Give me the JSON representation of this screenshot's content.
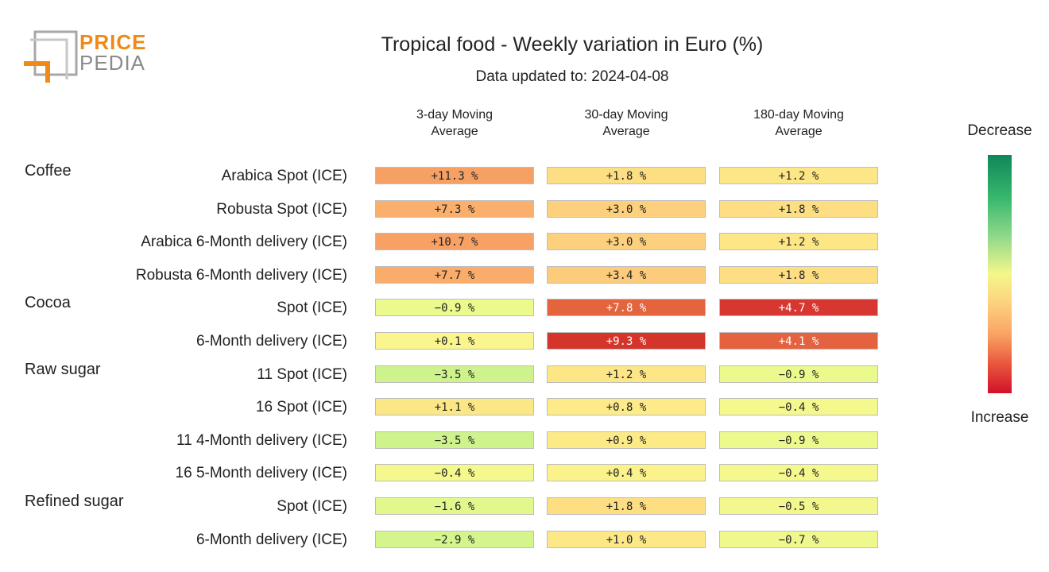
{
  "logo": {
    "line1": "PRICE",
    "line2": "PEDIA"
  },
  "chart_data": {
    "type": "heatmap",
    "title": "Tropical food - Weekly variation in Euro (%)",
    "subtitle": "Data updated to: 2024-04-08",
    "columns": [
      "3-day Moving Average",
      "30-day Moving Average",
      "180-day Moving Average"
    ],
    "column_lines": [
      [
        "3-day Moving",
        "Average"
      ],
      [
        "30-day Moving",
        "Average"
      ],
      [
        "180-day Moving",
        "Average"
      ]
    ],
    "scale": {
      "top_label": "Decrease",
      "bottom_label": "Increase"
    },
    "groups": [
      {
        "name": "Coffee",
        "rows": [
          {
            "label": "Arabica Spot (ICE)",
            "values": [
              11.3,
              1.8,
              1.2
            ],
            "texts": [
              "+11.3 %",
              "+1.8 %",
              "+1.2 %"
            ]
          },
          {
            "label": "Robusta Spot (ICE)",
            "values": [
              7.3,
              3.0,
              1.8
            ],
            "texts": [
              "+7.3 %",
              "+3.0 %",
              "+1.8 %"
            ]
          },
          {
            "label": "Arabica 6-Month delivery (ICE)",
            "values": [
              10.7,
              3.0,
              1.2
            ],
            "texts": [
              "+10.7 %",
              "+3.0 %",
              "+1.2 %"
            ]
          },
          {
            "label": "Robusta 6-Month delivery (ICE)",
            "values": [
              7.7,
              3.4,
              1.8
            ],
            "texts": [
              "+7.7 %",
              "+3.4 %",
              "+1.8 %"
            ]
          }
        ]
      },
      {
        "name": "Cocoa",
        "rows": [
          {
            "label": "Spot (ICE)",
            "values": [
              -0.9,
              7.8,
              4.7
            ],
            "texts": [
              "−0.9 %",
              "+7.8 %",
              "+4.7 %"
            ]
          },
          {
            "label": "6-Month delivery (ICE)",
            "values": [
              0.1,
              9.3,
              4.1
            ],
            "texts": [
              "+0.1 %",
              "+9.3 %",
              "+4.1 %"
            ]
          }
        ]
      },
      {
        "name": "Raw sugar",
        "rows": [
          {
            "label": "11 Spot (ICE)",
            "values": [
              -3.5,
              1.2,
              -0.9
            ],
            "texts": [
              "−3.5 %",
              "+1.2 %",
              "−0.9 %"
            ]
          },
          {
            "label": "16 Spot (ICE)",
            "values": [
              1.1,
              0.8,
              -0.4
            ],
            "texts": [
              "+1.1 %",
              "+0.8 %",
              "−0.4 %"
            ]
          },
          {
            "label": "11 4-Month delivery (ICE)",
            "values": [
              -3.5,
              0.9,
              -0.9
            ],
            "texts": [
              "−3.5 %",
              "+0.9 %",
              "−0.9 %"
            ]
          },
          {
            "label": "16 5-Month delivery (ICE)",
            "values": [
              -0.4,
              0.4,
              -0.4
            ],
            "texts": [
              "−0.4 %",
              "+0.4 %",
              "−0.4 %"
            ]
          }
        ]
      },
      {
        "name": "Refined sugar",
        "rows": [
          {
            "label": "Spot (ICE)",
            "values": [
              -1.6,
              1.8,
              -0.5
            ],
            "texts": [
              "−1.6 %",
              "+1.8 %",
              "−0.5 %"
            ]
          },
          {
            "label": "6-Month delivery (ICE)",
            "values": [
              -2.9,
              1.0,
              -0.7
            ],
            "texts": [
              "−2.9 %",
              "+1.0 %",
              "−0.7 %"
            ]
          }
        ]
      }
    ]
  }
}
